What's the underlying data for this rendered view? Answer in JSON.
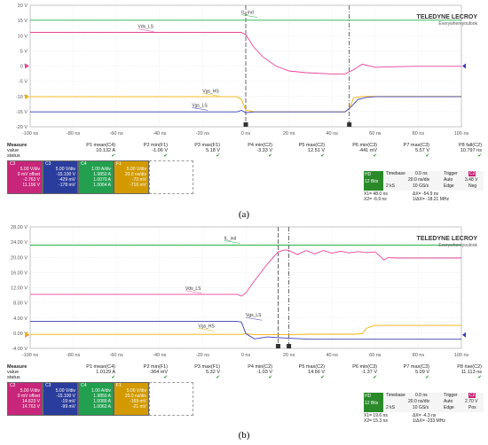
{
  "brand": {
    "name": "TELEDYNE LECROY",
    "tagline": "Everywhereyoulook"
  },
  "chart_data": [
    {
      "type": "line",
      "caption": "(a)",
      "xlabel": "",
      "ylabel": "",
      "xlim": [
        -100,
        100
      ],
      "ylim": [
        -20,
        20
      ],
      "x_ticks": [
        "-100 ns",
        "-80 ns",
        "-60 ns",
        "-40 ns",
        "-20 ns",
        "0 ns",
        "20 ns",
        "40 ns",
        "60 ns",
        "80 ns",
        "100 ns"
      ],
      "y_ticks": [
        "20 V",
        "15 V",
        "10 V",
        "5 V",
        "0 V",
        "-5 V",
        "-10 V",
        "-15 V",
        "-20 V"
      ],
      "grid": true,
      "colors": {
        "il_ind": "#22b14c",
        "vds_ls": "#e6449a",
        "vgs_hs": "#f2b100",
        "vgs_ls": "#3a3fb0",
        "pink_marker": "#e6449a"
      },
      "cursors_ns": [
        0,
        48
      ],
      "series": [
        {
          "key": "il_ind",
          "name": "IL_ind",
          "x": [
            -100,
            100
          ],
          "y": [
            15.1,
            15.1
          ]
        },
        {
          "key": "vds_ls",
          "name": "Vds_LS",
          "x": [
            -100,
            -40,
            -2,
            0,
            4,
            8,
            14,
            20,
            28,
            40,
            46,
            50,
            54,
            60,
            70,
            80,
            100
          ],
          "y": [
            11.1,
            11.1,
            11.1,
            10.3,
            6,
            3,
            0,
            -1.6,
            -2.2,
            -2.6,
            -2.6,
            -1.2,
            0.6,
            -0.4,
            -0.2,
            -0.1,
            -0.1
          ]
        },
        {
          "key": "vgs_hs",
          "name": "Vgs_HS",
          "x": [
            -100,
            -4,
            -2,
            0,
            4,
            20,
            46,
            48,
            50,
            54,
            60,
            100
          ],
          "y": [
            -10.1,
            -10.1,
            -11,
            -14.5,
            -15.1,
            -15.1,
            -15.1,
            -14,
            -10.5,
            -10,
            -10,
            -10
          ]
        },
        {
          "key": "vgs_ls",
          "name": "Vgs_LS",
          "x": [
            -100,
            -4,
            -2,
            0,
            4,
            40,
            46,
            48,
            52,
            56,
            60,
            100
          ],
          "y": [
            -15.1,
            -15.1,
            -14.6,
            -15.4,
            -15.1,
            -15.1,
            -15.1,
            -14,
            -11,
            -10.3,
            -10.1,
            -10.1
          ]
        }
      ],
      "labels": [
        {
          "series": "il_ind",
          "text": "IL_ind",
          "x": -2,
          "y": 17.2
        },
        {
          "series": "vds_ls",
          "text": "Vds_LS",
          "x": -50,
          "y": 12.5
        },
        {
          "series": "vgs_hs",
          "text": "Vgs_HS",
          "x": -20,
          "y": -8.7
        },
        {
          "series": "vgs_ls",
          "text": "Vgs_LS",
          "x": -25,
          "y": -13.4
        }
      ],
      "measure": {
        "header": "Measure",
        "rows": [
          "value",
          "status"
        ],
        "columns": [
          {
            "name": "P1 mean(C4)",
            "value": "10.132 A"
          },
          {
            "name": "P2 min(F1)",
            "value": "-1.06 V"
          },
          {
            "name": "P3 max(F1)",
            "value": "5.18 V"
          },
          {
            "name": "P4 min(C2)",
            "value": "-3.33 V"
          },
          {
            "name": "P5 max(C2)",
            "value": "12.51 V"
          },
          {
            "name": "P6 min(C3)",
            "value": "-441 mV"
          },
          {
            "name": "P7 max(C3)",
            "value": "5.57 V"
          },
          {
            "name": "P8 fall(C2)",
            "value": "10.797 ns"
          }
        ]
      },
      "channels": [
        {
          "name": "C2",
          "color": "#c8267a",
          "lines": [
            "5.00 V/div",
            "0 mV offset",
            "-2.763 V",
            "11.156 V"
          ]
        },
        {
          "name": "C3",
          "color": "#2b3d9c",
          "lines": [
            "5.00 V/div",
            "-15.100 V",
            "-429 mV",
            "-178 mV"
          ]
        },
        {
          "name": "C4",
          "color": "#22a050",
          "lines": [
            "1.00 A/div",
            "1.9850 A",
            "1.0070 A",
            "1.0064 A"
          ]
        },
        {
          "name": "F1",
          "color": "#d29a00",
          "lines": [
            "5.00 V/div",
            "20.0 ns/div",
            "-70 mV",
            "-716 mV"
          ]
        }
      ],
      "timebase": {
        "label": "Timebase",
        "delay": "0.0 ns",
        "trigger_label": "Trigger",
        "trigger_ch": "C2",
        "hd": "HD",
        "bits": "12 Bits",
        "time_div": "20.0 ns/div",
        "mode": "Auto",
        "trig_level": "3.48 V",
        "samples": "2 kS",
        "rate": "10 GS/s",
        "type": "Edge",
        "slope": "Neg",
        "x1": "X1= 48.0 ns",
        "dx": "ΔX= -54.9 ns",
        "x2": "X2= -6.9 ns",
        "fdx": "1/ΔX= -18.21 MHz"
      }
    },
    {
      "type": "line",
      "caption": "(b)",
      "xlabel": "",
      "ylabel": "",
      "xlim": [
        -100,
        100
      ],
      "ylim": [
        -4,
        32
      ],
      "x_ticks": [
        "-100 ns",
        "-80 ns",
        "-60 ns",
        "-40 ns",
        "-20 ns",
        "0 ns",
        "20 ns",
        "40 ns",
        "60 ns",
        "80 ns",
        "100 ns"
      ],
      "y_ticks": [
        "28.00 V",
        "24.00 V",
        "20.00 V",
        "16.00 V",
        "12.00 V",
        "8.00 V",
        "4.00 V",
        "0.00 V",
        "-4.00 V"
      ],
      "grid": true,
      "colors": {
        "il_ind": "#22b14c",
        "vds_ls": "#e6449a",
        "vgs_hs": "#f2b100",
        "vgs_ls": "#3a3fb0"
      },
      "cursors_ns": [
        15,
        20
      ],
      "series": [
        {
          "key": "il_ind",
          "name": "IL_ind",
          "x": [
            -100,
            100
          ],
          "y": [
            26.6,
            26.6
          ]
        },
        {
          "key": "vds_ls",
          "name": "Vds_LS",
          "x": [
            -100,
            -4,
            -2,
            0,
            4,
            10,
            15,
            18,
            20,
            24,
            28,
            32,
            36,
            40,
            44,
            48,
            52,
            56,
            60,
            62,
            64,
            66,
            70,
            100
          ],
          "y": [
            12,
            12,
            11.5,
            12.4,
            16,
            21,
            24.6,
            25.2,
            25,
            23.8,
            25,
            24,
            25,
            24.2,
            24.8,
            24.3,
            24.7,
            24.4,
            24.6,
            23.5,
            22.2,
            22.9,
            22.8,
            22.8
          ]
        },
        {
          "key": "vgs_hs",
          "name": "Vgs_HS",
          "x": [
            -100,
            -2,
            0,
            4,
            20,
            30,
            46,
            50,
            54,
            56,
            60,
            100
          ],
          "y": [
            0.15,
            0.15,
            0.3,
            0.1,
            0.1,
            0.2,
            0.2,
            0.2,
            0.3,
            2,
            2.8,
            2.8
          ]
        },
        {
          "key": "vgs_ls",
          "name": "Vgs_LS",
          "x": [
            -100,
            -4,
            -2,
            0,
            4,
            10,
            20,
            30,
            100
          ],
          "y": [
            4,
            4,
            3.8,
            0.4,
            -1.2,
            -0.6,
            -1,
            -1.3,
            -1.3
          ]
        }
      ],
      "labels": [
        {
          "series": "il_ind",
          "text": "IL_ind",
          "x": -10,
          "y": 28.2
        },
        {
          "series": "vds_ls",
          "text": "Vds_LS",
          "x": -28,
          "y": 13.4
        },
        {
          "series": "vgs_hs",
          "text": "Vgs_HS",
          "x": -22,
          "y": 2.2
        },
        {
          "series": "vgs_ls",
          "text": "Vgs_LS",
          "x": 0,
          "y": 5.4
        }
      ],
      "measure": {
        "header": "Measure",
        "rows": [
          "value",
          "status"
        ],
        "columns": [
          {
            "name": "P1 mean(C4)",
            "value": "1.0129 A"
          },
          {
            "name": "P2 min(F1)",
            "value": "-364 mV"
          },
          {
            "name": "P3 max(F1)",
            "value": "5.32 V"
          },
          {
            "name": "P4 min(C2)",
            "value": "-1.03 V"
          },
          {
            "name": "P5 max(C2)",
            "value": "14.66 V"
          },
          {
            "name": "P6 min(C3)",
            "value": "-1.37 V"
          },
          {
            "name": "P7 max(C3)",
            "value": "5.09 V"
          },
          {
            "name": "P8 rise(C2)",
            "value": "11.113 ns"
          }
        ]
      },
      "channels": [
        {
          "name": "C2",
          "color": "#c8267a",
          "lines": [
            "5.00 V/div",
            "0 mV offset",
            "14.623 V",
            "14.763 V"
          ]
        },
        {
          "name": "C3",
          "color": "#2b3d9c",
          "lines": [
            "5.00 V/div",
            "-15.100 V",
            "-19 mV",
            "-99 mV"
          ]
        },
        {
          "name": "C4",
          "color": "#22a050",
          "lines": [
            "1.00 A/div",
            "1.9850 A",
            "1.0089 A",
            "1.0062 A"
          ]
        },
        {
          "name": "F1",
          "color": "#d29a00",
          "lines": [
            "5.00 V/div",
            "20.0 ns/div",
            "-169 mV",
            "-21 mV"
          ]
        }
      ],
      "timebase": {
        "label": "Timebase",
        "delay": "0.0 ns",
        "trigger_label": "Trigger",
        "trigger_ch": "C2",
        "hd": "HD",
        "bits": "12 Bits",
        "time_div": "20.0 ns/div",
        "mode": "Auto",
        "trig_level": "2.70 V",
        "samples": "2 kS",
        "rate": "10 GS/s",
        "type": "Edge",
        "slope": "Pos",
        "x1": "X1= 19.6 ns",
        "dx": "ΔX= -4.3 ns",
        "x2": "X2= 15.3 ns",
        "fdx": "1/ΔX= -233 MHz"
      }
    }
  ]
}
